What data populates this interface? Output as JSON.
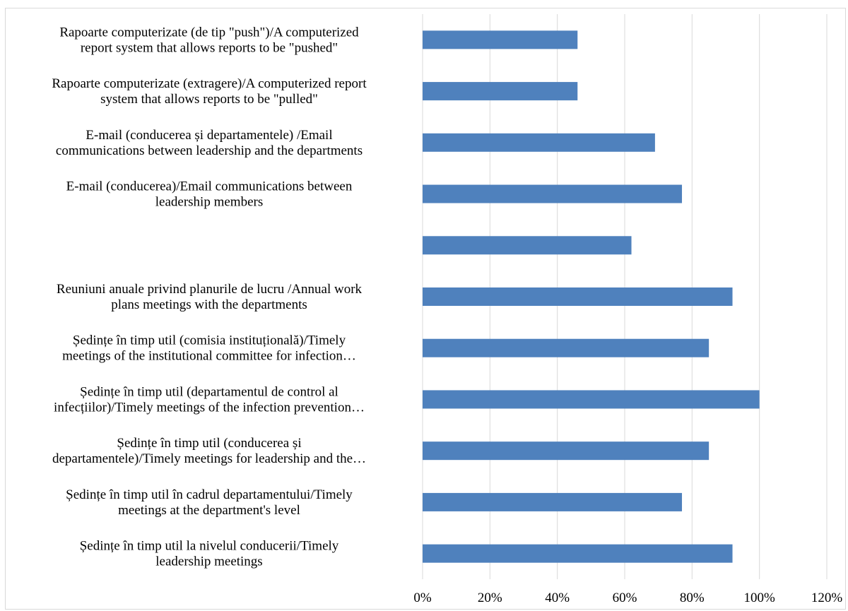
{
  "chart_data": {
    "type": "bar",
    "orientation": "horizontal",
    "categories": [
      [
        "Ședințe în timp util la nivelul conducerii/Timely",
        "leadership meetings"
      ],
      [
        "Ședințe în timp util în cadrul departamentului/Timely",
        "meetings at the department's level"
      ],
      [
        "Ședințe în timp util (conducerea și",
        "departamentele)/Timely meetings for leadership and the…"
      ],
      [
        "Ședințe în timp util (departamentul de control al",
        "infecțiilor)/Timely meetings of the infection prevention…"
      ],
      [
        "Ședințe în timp util (comisia instituțională)/Timely",
        "meetings of the institutional committee for infection…"
      ],
      [
        "Reuniuni anuale privind planurile de lucru /Annual work",
        "plans meetings with the departments"
      ],
      [],
      [
        "E-mail (conducerea)/Email communications between",
        "leadership members"
      ],
      [
        "E-mail (conducerea și departamentele) /Email",
        "communications between leadership and the departments"
      ],
      [
        "Rapoarte computerizate (extragere)/A computerized report",
        "system that allows reports to be \"pulled\""
      ],
      [
        "Rapoarte computerizate (de tip \"push\")/A computerized",
        "report system that allows reports to be \"pushed\""
      ]
    ],
    "values": [
      92,
      77,
      85,
      100,
      85,
      92,
      62,
      77,
      69,
      46,
      46
    ],
    "value_unit": "%",
    "xlim": [
      0,
      120
    ],
    "xticks": [
      "0%",
      "20%",
      "40%",
      "60%",
      "80%",
      "100%",
      "120%"
    ],
    "grid": "vertical",
    "legend": "none",
    "bar_color": "#4f81bd",
    "grid_color": "#d9d9d9",
    "title": "",
    "xlabel": "",
    "ylabel": ""
  }
}
